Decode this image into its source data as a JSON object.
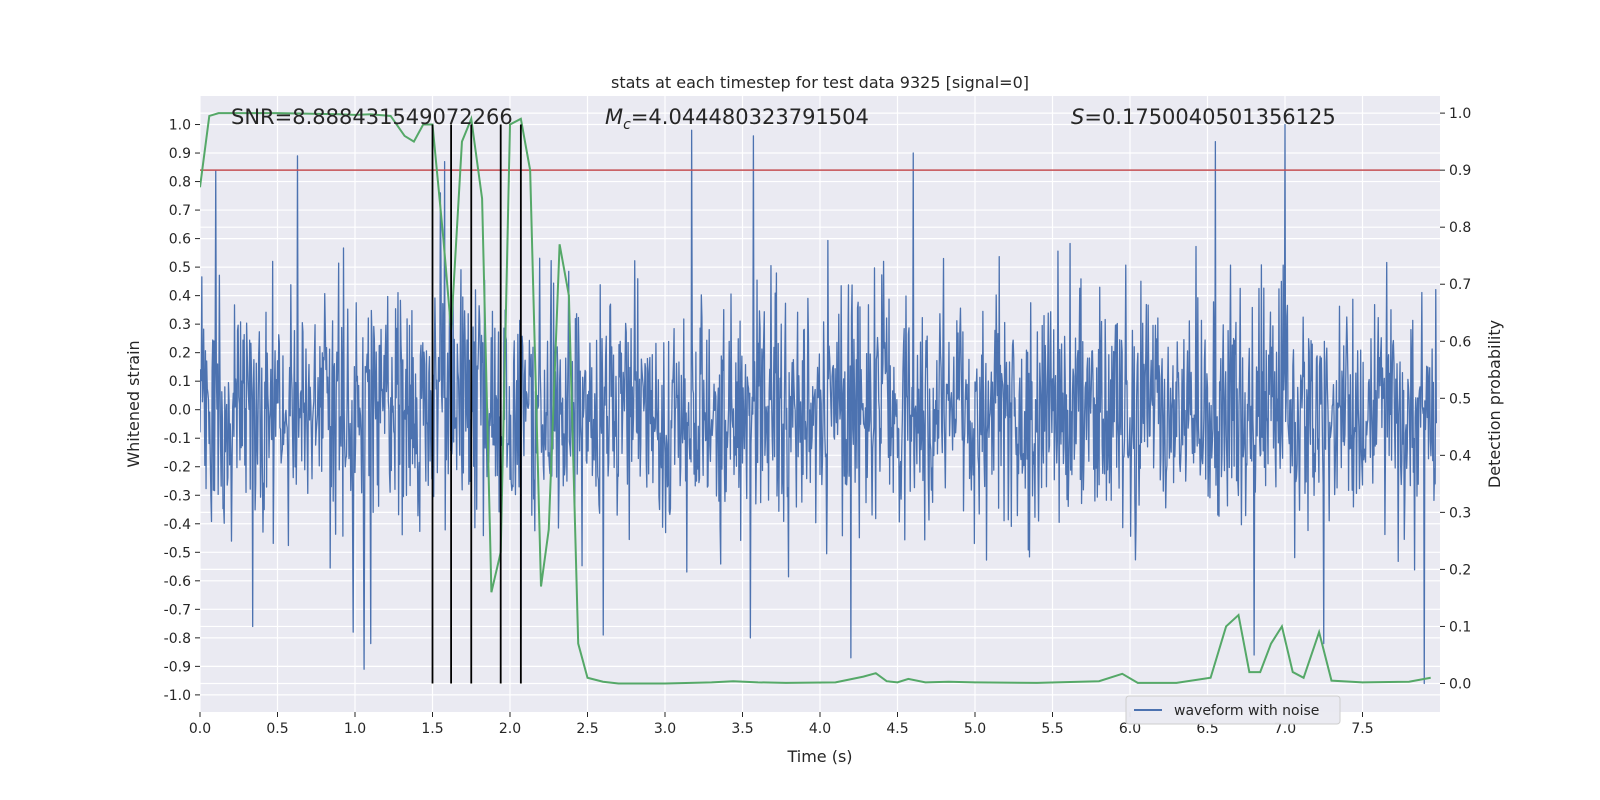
{
  "chart_data": {
    "type": "line",
    "title": "stats at each timestep for test data 9325 [signal=0]",
    "xlabel": "Time (s)",
    "ylabel": "Whitened strain",
    "ylabel_right": "Detection probability",
    "xlim": [
      0.0,
      8.0
    ],
    "ylim": [
      -1.06,
      1.1
    ],
    "ylim_right": [
      -0.05,
      1.03
    ],
    "xticks": [
      "0.0",
      "0.5",
      "1.0",
      "1.5",
      "2.0",
      "2.5",
      "3.0",
      "3.5",
      "4.0",
      "4.5",
      "5.0",
      "5.5",
      "6.0",
      "6.5",
      "7.0",
      "7.5"
    ],
    "xtick_values": [
      0.0,
      0.5,
      1.0,
      1.5,
      2.0,
      2.5,
      3.0,
      3.5,
      4.0,
      4.5,
      5.0,
      5.5,
      6.0,
      6.5,
      7.0,
      7.5
    ],
    "yticks": [
      "1.0",
      "0.9",
      "0.8",
      "0.7",
      "0.6",
      "0.5",
      "0.4",
      "0.3",
      "0.2",
      "0.1",
      "0.0",
      "-0.1",
      "-0.2",
      "-0.3",
      "-0.4",
      "-0.5",
      "-0.6",
      "-0.7",
      "-0.8",
      "-0.9",
      "-1.0"
    ],
    "ytick_values": [
      1.0,
      0.9,
      0.8,
      0.7,
      0.6,
      0.5,
      0.4,
      0.3,
      0.2,
      0.1,
      0.0,
      -0.1,
      -0.2,
      -0.3,
      -0.4,
      -0.5,
      -0.6,
      -0.7,
      -0.8,
      -0.9,
      -1.0
    ],
    "yticks_right": [
      "1.0",
      "0.9",
      "0.8",
      "0.7",
      "0.6",
      "0.5",
      "0.4",
      "0.3",
      "0.2",
      "0.1",
      "0.0"
    ],
    "ytick_right_values": [
      1.0,
      0.9,
      0.8,
      0.7,
      0.6,
      0.5,
      0.4,
      0.3,
      0.2,
      0.1,
      0.0
    ],
    "annotations": {
      "snr": "SNR=8.888431549072266",
      "mc_symbol": "M",
      "mc_sub": "c",
      "mc_value": "=4.044480323791504",
      "s_symbol": "S",
      "s_value": "=0.1750040501356125"
    },
    "legend": {
      "label": "waveform with noise",
      "position": "lower-right"
    },
    "threshold": {
      "value": 0.9,
      "axis": "right",
      "color": "#c44e52"
    },
    "vertical_markers": [
      1.5,
      1.62,
      1.75,
      1.94,
      2.07
    ],
    "marker_ymax": 1.0,
    "marker_ymin": -0.96,
    "waveform": {
      "name": "waveform with noise",
      "color": "#4c72b0",
      "n_samples": 2048,
      "seed": 9325,
      "spikes": [
        {
          "t": 0.1,
          "v": 0.84
        },
        {
          "t": 0.63,
          "v": 0.89
        },
        {
          "t": 1.58,
          "v": 0.87
        },
        {
          "t": 1.55,
          "v": 0.76
        },
        {
          "t": 3.17,
          "v": 0.98
        },
        {
          "t": 3.57,
          "v": 0.96
        },
        {
          "t": 4.6,
          "v": 0.9
        },
        {
          "t": 6.55,
          "v": 0.94
        },
        {
          "t": 7.0,
          "v": 1.0
        },
        {
          "t": 0.34,
          "v": -0.76
        },
        {
          "t": 1.06,
          "v": -0.91
        },
        {
          "t": 1.1,
          "v": -0.82
        },
        {
          "t": 0.99,
          "v": -0.78
        },
        {
          "t": 2.07,
          "v": -0.82
        },
        {
          "t": 4.2,
          "v": -0.87
        },
        {
          "t": 6.8,
          "v": -0.86
        },
        {
          "t": 7.9,
          "v": -0.96
        },
        {
          "t": 7.25,
          "v": -0.82
        },
        {
          "t": 2.6,
          "v": -0.79
        },
        {
          "t": 3.55,
          "v": -0.8
        }
      ]
    },
    "probability": {
      "name": "detection probability",
      "color": "#55a868",
      "x": [
        0.0,
        0.06,
        0.12,
        0.5,
        0.9,
        1.0,
        1.1,
        1.23,
        1.32,
        1.38,
        1.44,
        1.5,
        1.57,
        1.62,
        1.69,
        1.75,
        1.82,
        1.88,
        1.94,
        2.0,
        2.07,
        2.13,
        2.2,
        2.25,
        2.32,
        2.38,
        2.44,
        2.5,
        2.6,
        2.7,
        3.0,
        3.3,
        3.44,
        3.6,
        3.78,
        4.1,
        4.28,
        4.36,
        4.43,
        4.5,
        4.57,
        4.68,
        4.83,
        5.0,
        5.4,
        5.8,
        5.95,
        6.05,
        6.3,
        6.52,
        6.62,
        6.7,
        6.77,
        6.84,
        6.91,
        6.98,
        7.05,
        7.12,
        7.22,
        7.3,
        7.5,
        7.8,
        7.94
      ],
      "y": [
        0.87,
        0.995,
        1.0,
        1.0,
        0.998,
        0.997,
        0.998,
        0.995,
        0.96,
        0.95,
        0.98,
        0.98,
        0.78,
        0.62,
        0.95,
        0.99,
        0.85,
        0.16,
        0.23,
        0.98,
        0.99,
        0.9,
        0.17,
        0.27,
        0.77,
        0.68,
        0.07,
        0.01,
        0.003,
        0.0,
        0.0,
        0.002,
        0.004,
        0.002,
        0.001,
        0.002,
        0.012,
        0.018,
        0.004,
        0.002,
        0.008,
        0.002,
        0.003,
        0.002,
        0.001,
        0.004,
        0.017,
        0.001,
        0.001,
        0.01,
        0.1,
        0.12,
        0.02,
        0.02,
        0.07,
        0.1,
        0.02,
        0.01,
        0.09,
        0.005,
        0.002,
        0.003,
        0.01
      ]
    }
  }
}
